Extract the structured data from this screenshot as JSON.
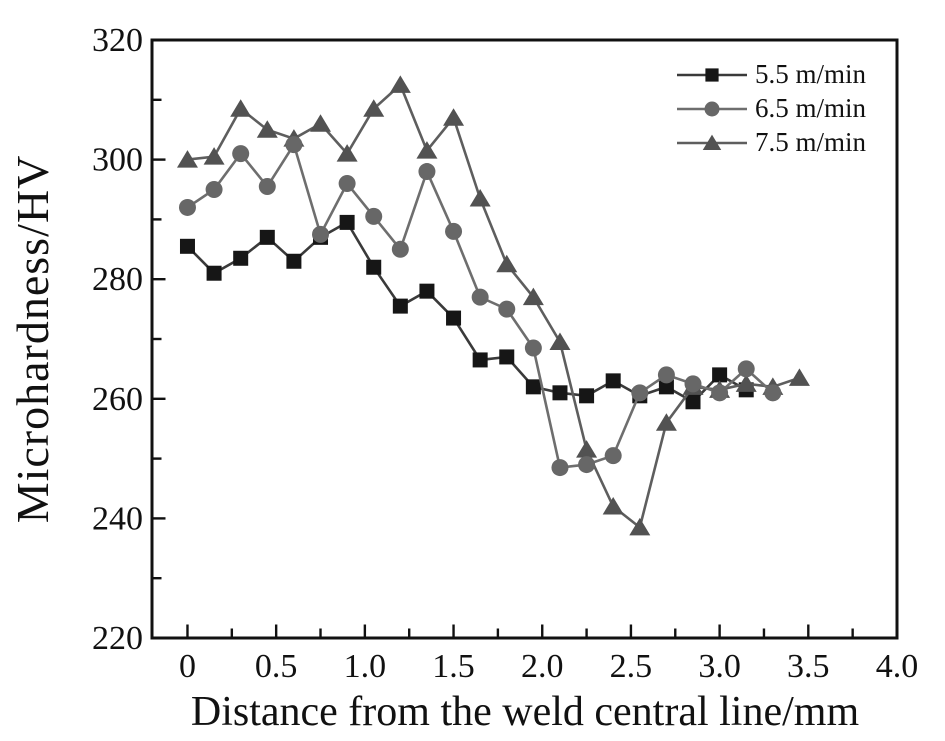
{
  "chart_data": {
    "type": "line",
    "title": "",
    "xlabel": "Distance from the weld central line/mm",
    "ylabel": "Microhardness/HV",
    "xlim": [
      -0.2,
      4.0
    ],
    "ylim": [
      220,
      320
    ],
    "grid": false,
    "legend_position": "top-right",
    "x_ticks": {
      "major": [
        0,
        0.5,
        1.0,
        1.5,
        2.0,
        2.5,
        3.0,
        3.5,
        4.0
      ],
      "labels": [
        "0",
        "0.5",
        "1.0",
        "1.5",
        "2.0",
        "2.5",
        "3.0",
        "3.5",
        "4.0"
      ],
      "minor_step": 0.25
    },
    "y_ticks": {
      "major": [
        220,
        240,
        260,
        280,
        300,
        320
      ],
      "labels": [
        "220",
        "240",
        "260",
        "280",
        "300",
        "320"
      ],
      "minor_step": 10
    },
    "series": [
      {
        "name": "5.5 m/min",
        "marker": "square",
        "color": "#161616",
        "line_color": "#3a3a3a",
        "x": [
          0,
          0.15,
          0.3,
          0.45,
          0.6,
          0.75,
          0.9,
          1.05,
          1.2,
          1.35,
          1.5,
          1.65,
          1.8,
          1.95,
          2.1,
          2.25,
          2.4,
          2.55,
          2.7,
          2.85,
          3.0,
          3.15
        ],
        "y": [
          285.5,
          281,
          283.5,
          287,
          283,
          287,
          289.5,
          282,
          275.5,
          278,
          273.5,
          266.5,
          267,
          262,
          261,
          260.5,
          263,
          260.5,
          262,
          259.5,
          264,
          261.5
        ]
      },
      {
        "name": "6.5 m/min",
        "marker": "circle",
        "color": "#676767",
        "line_color": "#6e6e6e",
        "x": [
          0,
          0.15,
          0.3,
          0.45,
          0.6,
          0.75,
          0.9,
          1.05,
          1.2,
          1.35,
          1.5,
          1.65,
          1.8,
          1.95,
          2.1,
          2.25,
          2.4,
          2.55,
          2.7,
          2.85,
          3.0,
          3.15,
          3.3
        ],
        "y": [
          292,
          295,
          301,
          295.5,
          302.5,
          287.5,
          296,
          290.5,
          285,
          298,
          288,
          277,
          275,
          268.5,
          248.5,
          249,
          250.5,
          261,
          264,
          262.5,
          261,
          265,
          261
        ]
      },
      {
        "name": "7.5 m/min",
        "marker": "triangle",
        "color": "#525252",
        "line_color": "#5e5e5e",
        "x": [
          0,
          0.15,
          0.3,
          0.45,
          0.6,
          0.75,
          0.9,
          1.05,
          1.2,
          1.35,
          1.5,
          1.65,
          1.8,
          1.95,
          2.1,
          2.25,
          2.4,
          2.55,
          2.7,
          2.85,
          3.0,
          3.15,
          3.3,
          3.45
        ],
        "y": [
          300,
          300.5,
          308.5,
          305,
          303.5,
          306,
          301,
          308.5,
          312.5,
          301.5,
          307,
          293.5,
          282.5,
          277,
          269.5,
          251.5,
          242,
          238.5,
          256,
          262,
          261.5,
          262.5,
          262,
          263.5
        ]
      }
    ]
  }
}
